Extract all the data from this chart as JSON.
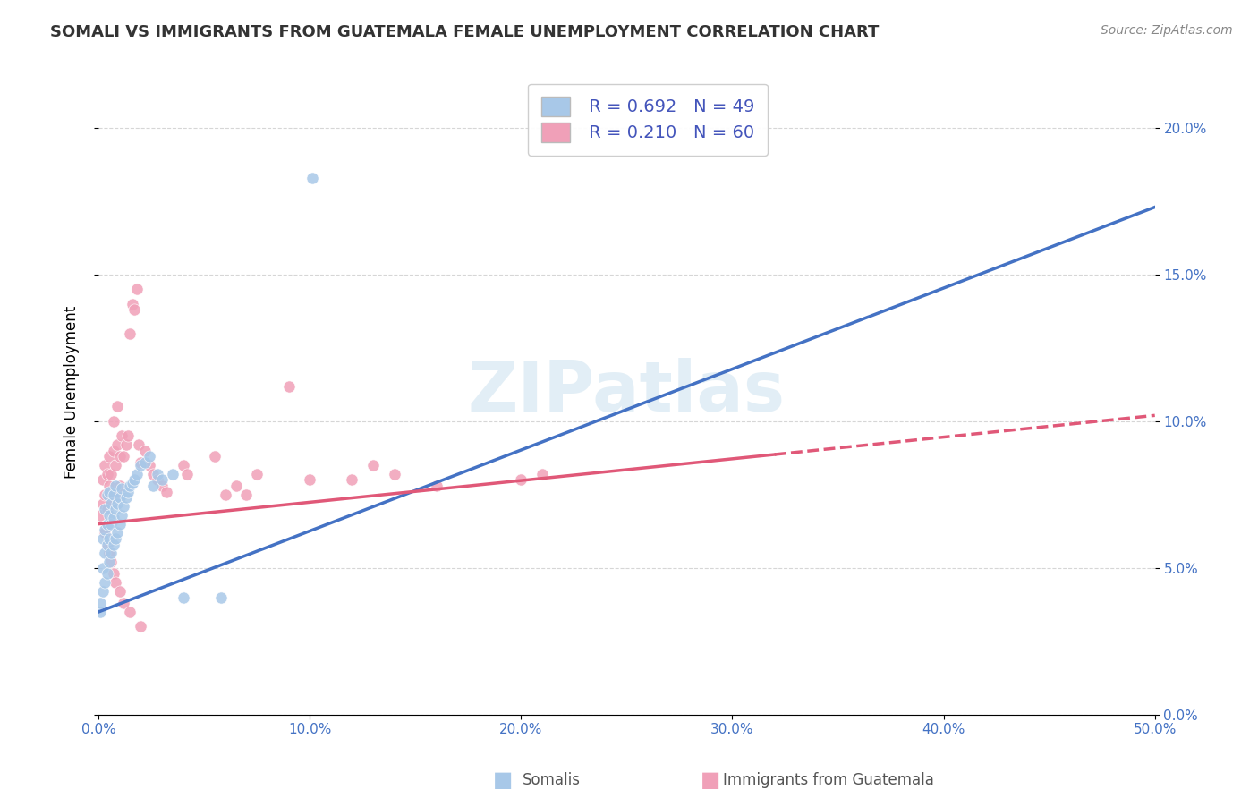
{
  "title": "SOMALI VS IMMIGRANTS FROM GUATEMALA FEMALE UNEMPLOYMENT CORRELATION CHART",
  "source": "Source: ZipAtlas.com",
  "ylabel": "Female Unemployment",
  "legend_label1": "Somalis",
  "legend_label2": "Immigrants from Guatemala",
  "r1": 0.692,
  "n1": 49,
  "r2": 0.21,
  "n2": 60,
  "somali_color": "#a8c8e8",
  "guatemala_color": "#f0a0b8",
  "trend1_color": "#4472c4",
  "trend2_color": "#e05878",
  "watermark": "ZIPatlas",
  "xlim": [
    0.0,
    0.5
  ],
  "ylim": [
    0.0,
    0.22
  ],
  "xticks": [
    0.0,
    0.1,
    0.2,
    0.3,
    0.4,
    0.5
  ],
  "yticks": [
    0.0,
    0.05,
    0.1,
    0.15,
    0.2
  ],
  "trend1_x0": 0.0,
  "trend1_y0": 0.035,
  "trend1_x1": 0.5,
  "trend1_y1": 0.173,
  "trend2_x0": 0.0,
  "trend2_y0": 0.065,
  "trend2_x1": 0.5,
  "trend2_y1": 0.102,
  "trend2_solid_end_x": 0.32,
  "somali_x": [
    0.001,
    0.001,
    0.002,
    0.002,
    0.002,
    0.003,
    0.003,
    0.003,
    0.003,
    0.004,
    0.004,
    0.004,
    0.004,
    0.005,
    0.005,
    0.005,
    0.005,
    0.006,
    0.006,
    0.006,
    0.007,
    0.007,
    0.007,
    0.008,
    0.008,
    0.008,
    0.009,
    0.009,
    0.01,
    0.01,
    0.011,
    0.011,
    0.012,
    0.013,
    0.014,
    0.015,
    0.016,
    0.017,
    0.018,
    0.02,
    0.022,
    0.024,
    0.026,
    0.028,
    0.03,
    0.035,
    0.04,
    0.058,
    0.101
  ],
  "somali_y": [
    0.035,
    0.038,
    0.042,
    0.05,
    0.06,
    0.045,
    0.055,
    0.063,
    0.07,
    0.048,
    0.058,
    0.065,
    0.075,
    0.052,
    0.06,
    0.068,
    0.076,
    0.055,
    0.065,
    0.072,
    0.058,
    0.067,
    0.075,
    0.06,
    0.07,
    0.078,
    0.062,
    0.072,
    0.065,
    0.074,
    0.068,
    0.077,
    0.071,
    0.074,
    0.076,
    0.078,
    0.079,
    0.08,
    0.082,
    0.085,
    0.086,
    0.088,
    0.078,
    0.082,
    0.08,
    0.082,
    0.04,
    0.04,
    0.183
  ],
  "guatemala_x": [
    0.001,
    0.002,
    0.002,
    0.003,
    0.003,
    0.004,
    0.004,
    0.005,
    0.005,
    0.006,
    0.006,
    0.007,
    0.007,
    0.008,
    0.008,
    0.009,
    0.009,
    0.01,
    0.01,
    0.011,
    0.012,
    0.013,
    0.014,
    0.015,
    0.016,
    0.017,
    0.018,
    0.019,
    0.02,
    0.022,
    0.024,
    0.026,
    0.028,
    0.03,
    0.032,
    0.04,
    0.042,
    0.055,
    0.06,
    0.065,
    0.07,
    0.075,
    0.09,
    0.1,
    0.12,
    0.13,
    0.14,
    0.16,
    0.2,
    0.21,
    0.003,
    0.004,
    0.005,
    0.006,
    0.007,
    0.008,
    0.01,
    0.012,
    0.015,
    0.02
  ],
  "guatemala_y": [
    0.068,
    0.072,
    0.08,
    0.075,
    0.085,
    0.07,
    0.082,
    0.078,
    0.088,
    0.072,
    0.082,
    0.09,
    0.1,
    0.075,
    0.085,
    0.092,
    0.105,
    0.078,
    0.088,
    0.095,
    0.088,
    0.092,
    0.095,
    0.13,
    0.14,
    0.138,
    0.145,
    0.092,
    0.086,
    0.09,
    0.085,
    0.082,
    0.08,
    0.078,
    0.076,
    0.085,
    0.082,
    0.088,
    0.075,
    0.078,
    0.075,
    0.082,
    0.112,
    0.08,
    0.08,
    0.085,
    0.082,
    0.078,
    0.08,
    0.082,
    0.062,
    0.058,
    0.055,
    0.052,
    0.048,
    0.045,
    0.042,
    0.038,
    0.035,
    0.03
  ]
}
